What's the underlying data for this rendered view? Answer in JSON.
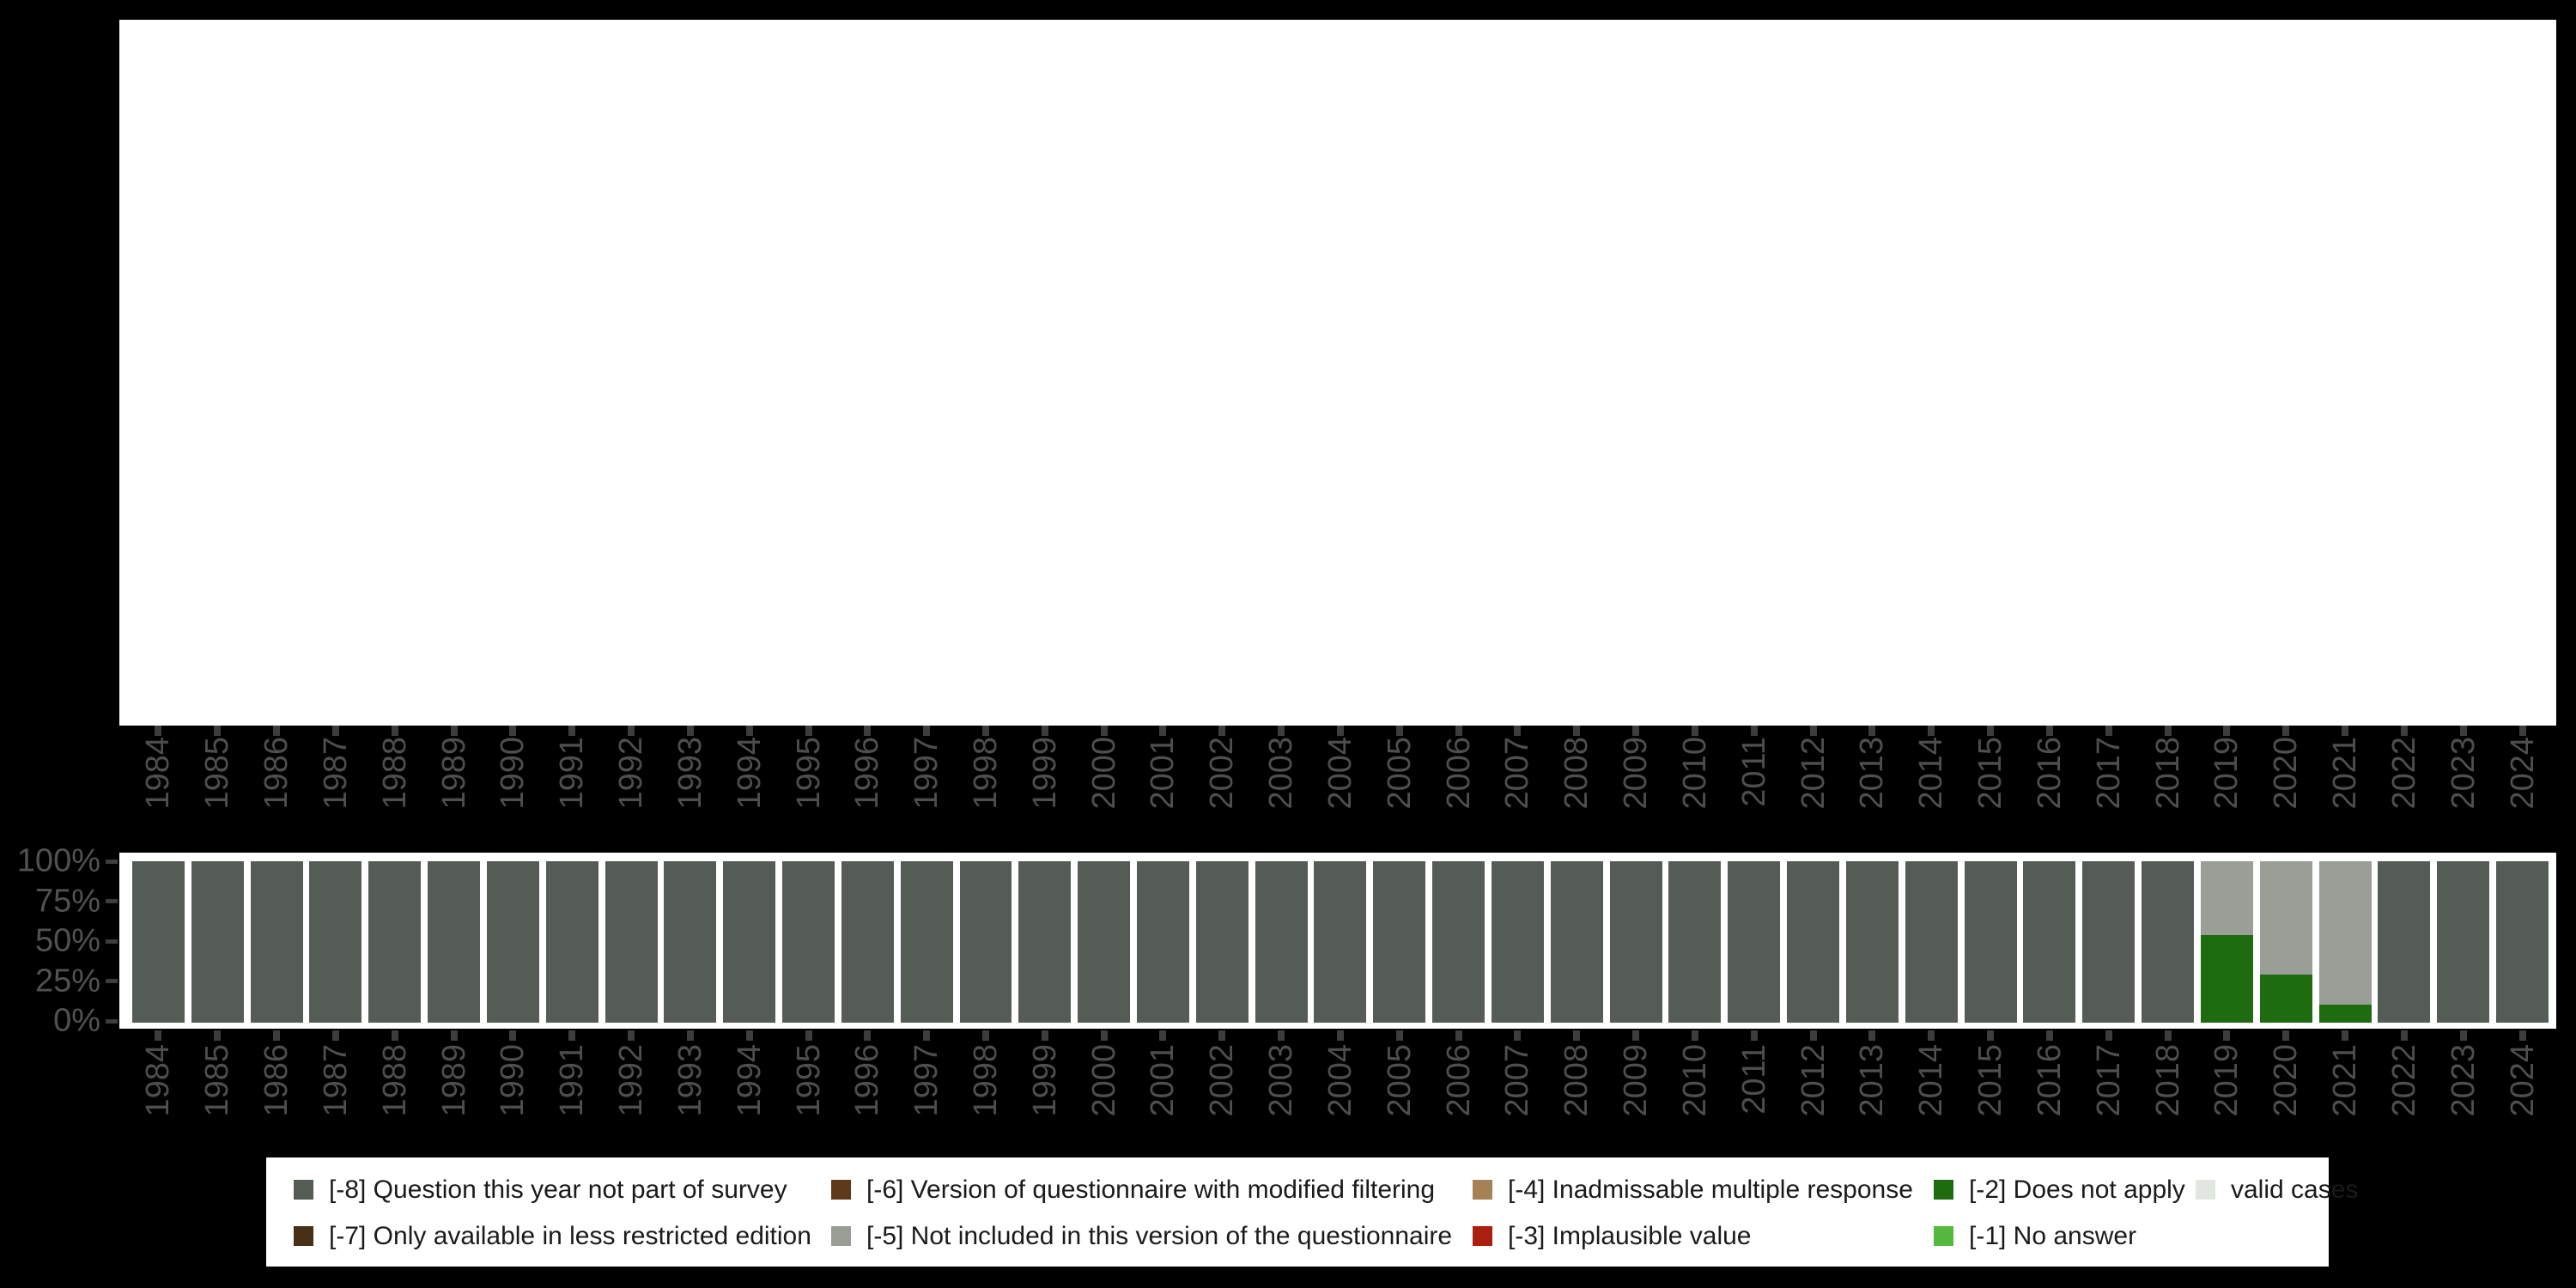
{
  "figure": {
    "background_color": "#000000",
    "panel_color": "#ffffff",
    "axis_text_color": "#4e4e4e",
    "tick_color": "#3d3d3d"
  },
  "chart_data": {
    "type": "bar",
    "stacked": true,
    "title": "",
    "xlabel": "",
    "ylabel": "",
    "ylim": [
      0,
      100
    ],
    "grid": false,
    "legend_position": "bottom",
    "y_tick_labels": [
      "100%",
      "75%",
      "50%",
      "25%",
      "0%"
    ],
    "categories": [
      "1984",
      "1985",
      "1986",
      "1987",
      "1988",
      "1989",
      "1990",
      "1991",
      "1992",
      "1993",
      "1994",
      "1995",
      "1996",
      "1997",
      "1998",
      "1999",
      "2000",
      "2001",
      "2002",
      "2003",
      "2004",
      "2005",
      "2006",
      "2007",
      "2008",
      "2009",
      "2010",
      "2011",
      "2012",
      "2013",
      "2014",
      "2015",
      "2016",
      "2017",
      "2018",
      "2019",
      "2020",
      "2021",
      "2022",
      "2023",
      "2024"
    ],
    "series": [
      {
        "name": "[-2] Does not apply",
        "color": "#1f6b10",
        "values": [
          0,
          0,
          0,
          0,
          0,
          0,
          0,
          0,
          0,
          0,
          0,
          0,
          0,
          0,
          0,
          0,
          0,
          0,
          0,
          0,
          0,
          0,
          0,
          0,
          0,
          0,
          0,
          0,
          0,
          0,
          0,
          0,
          0,
          0,
          0,
          54,
          30,
          11,
          0,
          0,
          0
        ]
      },
      {
        "name": "[-5] Not included in this version of the questionnaire",
        "color": "#999e96",
        "values": [
          0,
          0,
          0,
          0,
          0,
          0,
          0,
          0,
          0,
          0,
          0,
          0,
          0,
          0,
          0,
          0,
          0,
          0,
          0,
          0,
          0,
          0,
          0,
          0,
          0,
          0,
          0,
          0,
          0,
          0,
          0,
          0,
          0,
          0,
          0,
          46,
          70,
          89,
          0,
          0,
          0
        ]
      },
      {
        "name": "[-8] Question this year not part of survey",
        "color": "#555c55",
        "values": [
          100,
          100,
          100,
          100,
          100,
          100,
          100,
          100,
          100,
          100,
          100,
          100,
          100,
          100,
          100,
          100,
          100,
          100,
          100,
          100,
          100,
          100,
          100,
          100,
          100,
          100,
          100,
          100,
          100,
          100,
          100,
          100,
          100,
          100,
          100,
          0,
          0,
          0,
          100,
          100,
          100
        ]
      }
    ]
  },
  "legend": {
    "items": [
      {
        "label": "[-8] Question this year not part of survey",
        "color": "#555c55",
        "col": 0,
        "row": 0
      },
      {
        "label": "[-7] Only available in less restricted edition",
        "color": "#483016",
        "col": 0,
        "row": 1
      },
      {
        "label": "[-6] Version of questionnaire with modified filtering",
        "color": "#5d3a1a",
        "col": 1,
        "row": 0
      },
      {
        "label": "[-5] Not included in this version of the questionnaire",
        "color": "#999e96",
        "col": 1,
        "row": 1
      },
      {
        "label": "[-4] Inadmissable multiple response",
        "color": "#a48255",
        "col": 2,
        "row": 0
      },
      {
        "label": "[-3] Implausible value",
        "color": "#a9200f",
        "col": 2,
        "row": 1
      },
      {
        "label": "[-2] Does not apply",
        "color": "#1f6b10",
        "col": 3,
        "row": 0
      },
      {
        "label": "[-1] No answer",
        "color": "#56b93f",
        "col": 3,
        "row": 1
      },
      {
        "label": "valid cases",
        "color": "#e2e6e0",
        "col": 4,
        "row": 0
      }
    ]
  }
}
